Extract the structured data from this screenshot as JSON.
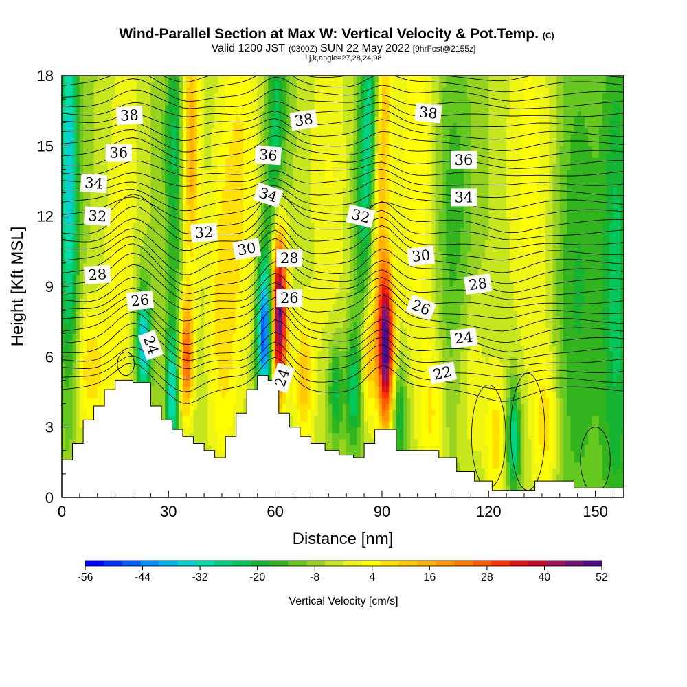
{
  "chart_data": {
    "type": "heatmap",
    "title": "Wind-Parallel Section at Max W: Vertical Velocity & Pot.Temp.",
    "title_mark": "(C)",
    "subtitle": {
      "valid": "Valid 1200 JST",
      "utc": "(0300Z)",
      "date": "SUN 22 May 2022",
      "fcst": "[9hrFcst@2155z]"
    },
    "indices": "i,j,k,angle=27,28,24,98",
    "xlabel": "Distance [nm]",
    "ylabel": "Height [Kft MSL]",
    "xlim": [
      0,
      158
    ],
    "ylim": [
      0,
      18
    ],
    "x_ticks": [
      0,
      30,
      60,
      90,
      120,
      150
    ],
    "y_ticks": [
      0,
      3,
      6,
      9,
      12,
      15,
      18
    ],
    "colorbar": {
      "label": "Vertical Velocity [cm/s]",
      "tick_labels": [
        -56,
        -44,
        -32,
        -20,
        -8,
        4,
        16,
        28,
        40,
        52
      ],
      "min": -56,
      "max": 52,
      "colors": [
        "#0000ff",
        "#0030ff",
        "#0060ff",
        "#0090ff",
        "#00b4f0",
        "#00d2d2",
        "#00dcaa",
        "#00d282",
        "#00c85a",
        "#14b432",
        "#32b41e",
        "#64c81e",
        "#96d21e",
        "#c8e61e",
        "#f0f514",
        "#ffff00",
        "#ffe000",
        "#ffc800",
        "#ffb000",
        "#ff9600",
        "#ff7800",
        "#ff5a00",
        "#ff3200",
        "#e61414",
        "#c80a28",
        "#a0145a",
        "#781478",
        "#500a8c"
      ]
    },
    "isentropes_label": "Pot.Temp.",
    "contour_labels": [
      {
        "v": "38",
        "x": 19,
        "y": 16.3,
        "a": -3
      },
      {
        "v": "38",
        "x": 68,
        "y": 16.1,
        "a": -8
      },
      {
        "v": "38",
        "x": 103,
        "y": 16.4,
        "a": 6
      },
      {
        "v": "36",
        "x": 16,
        "y": 14.7,
        "a": 0
      },
      {
        "v": "36",
        "x": 58,
        "y": 14.6,
        "a": 4
      },
      {
        "v": "36",
        "x": 113,
        "y": 14.4,
        "a": 0
      },
      {
        "v": "34",
        "x": 9,
        "y": 13.4,
        "a": 4
      },
      {
        "v": "34",
        "x": 58,
        "y": 12.9,
        "a": 18
      },
      {
        "v": "34",
        "x": 113,
        "y": 12.8,
        "a": 0
      },
      {
        "v": "32",
        "x": 10,
        "y": 12.0,
        "a": 4
      },
      {
        "v": "32",
        "x": 40,
        "y": 11.3,
        "a": -4
      },
      {
        "v": "32",
        "x": 84,
        "y": 12.0,
        "a": 14
      },
      {
        "v": "30",
        "x": 52,
        "y": 10.6,
        "a": -10
      },
      {
        "v": "30",
        "x": 101,
        "y": 10.3,
        "a": -6
      },
      {
        "v": "28",
        "x": 10,
        "y": 9.5,
        "a": -4
      },
      {
        "v": "28",
        "x": 64,
        "y": 10.2,
        "a": 0
      },
      {
        "v": "28",
        "x": 117,
        "y": 9.1,
        "a": -8
      },
      {
        "v": "26",
        "x": 22,
        "y": 8.4,
        "a": -6
      },
      {
        "v": "26",
        "x": 64,
        "y": 8.5,
        "a": 0
      },
      {
        "v": "26",
        "x": 101,
        "y": 8.1,
        "a": 22
      },
      {
        "v": "24",
        "x": 25,
        "y": 6.5,
        "a": 70
      },
      {
        "v": "24",
        "x": 62,
        "y": 5.1,
        "a": -72
      },
      {
        "v": "24",
        "x": 113,
        "y": 6.8,
        "a": -6
      },
      {
        "v": "22",
        "x": 107,
        "y": 5.3,
        "a": -12
      }
    ],
    "terrain": [
      [
        0,
        1.6
      ],
      [
        3,
        2.3
      ],
      [
        6,
        3.3
      ],
      [
        9,
        3.9
      ],
      [
        12,
        4.6
      ],
      [
        15,
        5.0
      ],
      [
        20,
        4.9
      ],
      [
        25,
        3.9
      ],
      [
        28,
        3.3
      ],
      [
        31,
        2.9
      ],
      [
        34,
        2.6
      ],
      [
        37,
        2.3
      ],
      [
        40,
        2.0
      ],
      [
        43,
        1.7
      ],
      [
        46,
        2.6
      ],
      [
        49,
        3.6
      ],
      [
        52,
        4.6
      ],
      [
        55,
        5.2
      ],
      [
        58,
        5.0
      ],
      [
        61,
        3.6
      ],
      [
        64,
        3.0
      ],
      [
        67,
        2.6
      ],
      [
        70,
        2.3
      ],
      [
        74,
        2.0
      ],
      [
        78,
        1.8
      ],
      [
        82,
        1.7
      ],
      [
        85,
        2.3
      ],
      [
        88,
        2.9
      ],
      [
        91,
        2.9
      ],
      [
        94,
        2.0
      ],
      [
        100,
        2.0
      ],
      [
        106,
        1.7
      ],
      [
        111,
        1.1
      ],
      [
        116,
        0.7
      ],
      [
        121,
        0.3
      ],
      [
        129,
        0.3
      ],
      [
        133,
        0.7
      ],
      [
        141,
        0.7
      ],
      [
        144,
        0.4
      ],
      [
        150,
        0.4
      ],
      [
        158,
        0.4
      ]
    ]
  }
}
